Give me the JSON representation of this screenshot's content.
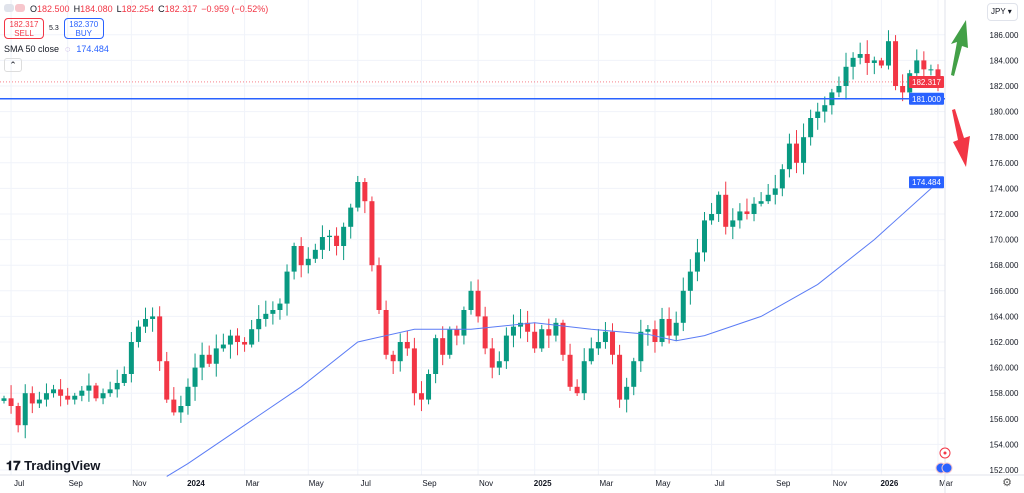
{
  "legend": {
    "open_label": "O",
    "open": "182.500",
    "high_label": "H",
    "high": "184.080",
    "low_label": "L",
    "low": "182.254",
    "close_label": "C",
    "close": "182.317",
    "change": "−0.959 (−0.52%)"
  },
  "trade": {
    "sell_price": "182.317",
    "sell_label": "SELL",
    "spread": "5.3",
    "buy_price": "182.370",
    "buy_label": "BUY"
  },
  "indicator": {
    "name": "SMA 50 close",
    "value": "174.484"
  },
  "currency": "JPY",
  "brand": "TradingView",
  "colors": {
    "up": "#089981",
    "down": "#f23645",
    "sma": "#5b7cf5",
    "hline": "#2962ff"
  },
  "chart_data": {
    "type": "candlestick",
    "interval": "weekly",
    "first_open": 157.4,
    "close": [
      157.6,
      157.0,
      155.5,
      158.0,
      157.2,
      157.5,
      158.0,
      158.3,
      157.8,
      157.5,
      157.8,
      158.2,
      158.6,
      157.6,
      158.0,
      158.3,
      158.8,
      159.5,
      162.0,
      163.2,
      163.8,
      164.0,
      160.5,
      157.5,
      156.5,
      157.0,
      158.5,
      160.0,
      161.0,
      160.3,
      161.5,
      161.8,
      162.5,
      162.0,
      161.8,
      163.0,
      163.8,
      164.2,
      164.5,
      165.0,
      167.5,
      169.5,
      168.0,
      168.5,
      169.2,
      170.2,
      170.3,
      169.5,
      171.0,
      172.5,
      174.5,
      173.0,
      168.0,
      164.5,
      161.0,
      160.5,
      162.0,
      161.5,
      158.0,
      157.5,
      159.5,
      162.3,
      161.0,
      163.0,
      162.5,
      164.5,
      166.0,
      164.0,
      161.5,
      160.0,
      160.5,
      162.5,
      163.2,
      163.5,
      162.8,
      161.5,
      163.0,
      162.5,
      163.5,
      161.0,
      158.5,
      158.0,
      160.5,
      161.5,
      162.0,
      162.8,
      161.0,
      157.5,
      158.5,
      160.5,
      162.8,
      163.0,
      162.0,
      163.8,
      162.5,
      163.5,
      166.0,
      167.5,
      169.0,
      171.5,
      172.0,
      173.5,
      171.0,
      171.5,
      172.2,
      172.0,
      172.8,
      173.0,
      173.5,
      174.0,
      175.5,
      177.5,
      176.0,
      178.0,
      179.5,
      180.0,
      180.5,
      181.5,
      182.0,
      183.5,
      184.2,
      184.5,
      183.8,
      184.0,
      183.6,
      185.5,
      182.0,
      181.5,
      183.0,
      184.0,
      183.3,
      183.3,
      182.317
    ],
    "sma50": [
      [
        23,
        151.5
      ],
      [
        26,
        152.5
      ],
      [
        34,
        155.5
      ],
      [
        42,
        158.5
      ],
      [
        50,
        162
      ],
      [
        58,
        163
      ],
      [
        66,
        163
      ],
      [
        75,
        163.5
      ],
      [
        83,
        163
      ],
      [
        91,
        162.6
      ],
      [
        95,
        162.1
      ],
      [
        99,
        162.5
      ],
      [
        107,
        164
      ],
      [
        115,
        166.5
      ],
      [
        123,
        170
      ],
      [
        132,
        174.484
      ]
    ],
    "horizontal_line": 181.0,
    "last_price": 182.317,
    "y_ticks": [
      "152.000",
      "154.000",
      "156.000",
      "158.000",
      "160.000",
      "162.000",
      "164.000",
      "166.000",
      "168.000",
      "170.000",
      "172.000",
      "174.000",
      "176.000",
      "178.000",
      "180.000",
      "182.000",
      "184.000",
      "186.000"
    ],
    "y_tick_values": [
      152,
      154,
      156,
      158,
      160,
      162,
      164,
      166,
      168,
      170,
      172,
      174,
      176,
      178,
      180,
      182,
      184,
      186
    ],
    "x_ticks": [
      "Jul",
      "Sep",
      "Nov",
      "2024",
      "Mar",
      "May",
      "Jul",
      "Sep",
      "Nov",
      "2025",
      "Mar",
      "May",
      "Jul",
      "Sep",
      "Nov",
      "2026",
      "Mar"
    ],
    "x_tick_index": [
      1,
      9,
      18,
      26,
      34,
      43,
      50,
      59,
      67,
      75,
      84,
      92,
      100,
      109,
      117,
      124,
      132
    ],
    "price_labels": {
      "last": "182.317",
      "hline": "181.000",
      "sma": "174.484"
    },
    "ylim": [
      151.2,
      187.2
    ]
  }
}
